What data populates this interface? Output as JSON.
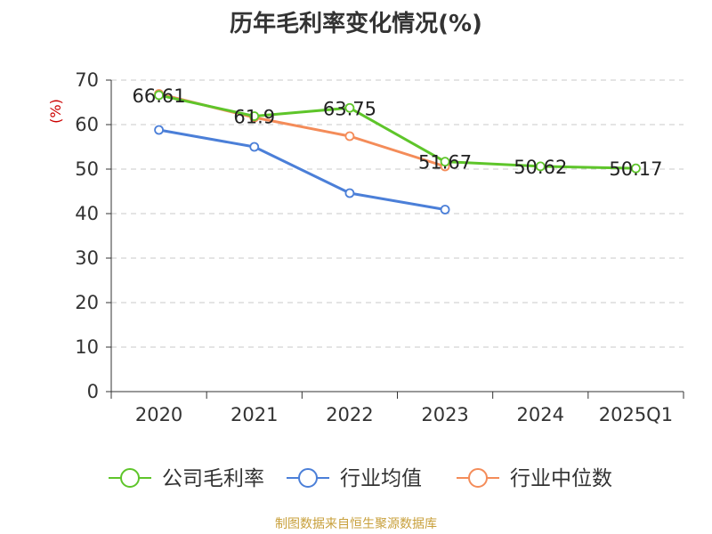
{
  "chart_data": {
    "type": "line",
    "title": "历年毛利率变化情况(%)",
    "ylabel": "(%)",
    "xlabel": "",
    "ylim": [
      0,
      70
    ],
    "yticks": [
      0,
      10,
      20,
      30,
      40,
      50,
      60,
      70
    ],
    "categories": [
      "2020",
      "2021",
      "2022",
      "2023",
      "2024",
      "2025Q1"
    ],
    "grid": true,
    "legend_position": "bottom",
    "series": [
      {
        "name": "公司毛利率",
        "color": "#5ec52a",
        "values": [
          66.61,
          61.9,
          63.75,
          51.67,
          50.62,
          50.17
        ],
        "labels": [
          "66.61",
          "61.9",
          "63.75",
          "51.67",
          "50.62",
          "50.17"
        ]
      },
      {
        "name": "行业均值",
        "color": "#4b7fd8",
        "values": [
          58.8,
          55.0,
          44.6,
          40.9,
          null,
          null
        ]
      },
      {
        "name": "行业中位数",
        "color": "#f48c59",
        "values": [
          66.9,
          61.6,
          57.4,
          50.6,
          null,
          null
        ]
      }
    ]
  },
  "source": "制图数据来自恒生聚源数据库"
}
